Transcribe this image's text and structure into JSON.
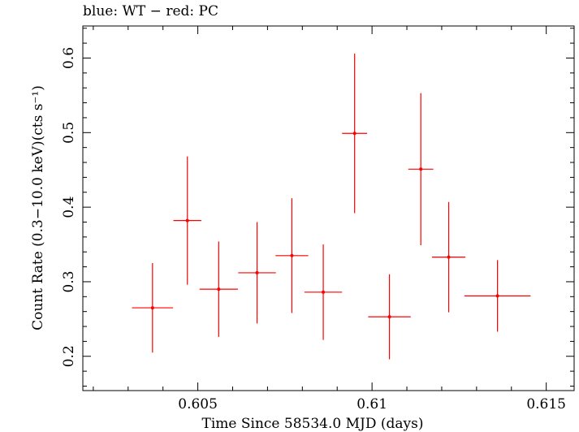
{
  "chart_data": {
    "type": "scatter",
    "title": "blue: WT − red: PC",
    "xlabel": "Time Since 58534.0 MJD (days)",
    "ylabel": "Count Rate (0.3−10.0 keV)(cts s⁻¹)",
    "xlim": [
      0.6017,
      0.6158
    ],
    "ylim": [
      0.154,
      0.643
    ],
    "x_ticks": [
      0.605,
      0.61,
      0.615
    ],
    "x_tick_labels": [
      "0.605",
      "0.61",
      "0.615"
    ],
    "y_ticks": [
      0.2,
      0.3,
      0.4,
      0.5,
      0.6
    ],
    "y_tick_labels": [
      "0.2",
      "0.3",
      "0.4",
      "0.5",
      "0.6"
    ],
    "grid": false,
    "series": [
      {
        "color": "#ff0000",
        "points": [
          {
            "x": 0.6037,
            "y": 0.265,
            "xerr": 0.00059,
            "yerr_low": 0.06,
            "yerr_high": 0.06
          },
          {
            "x": 0.6047,
            "y": 0.382,
            "xerr": 0.0004,
            "yerr_low": 0.086,
            "yerr_high": 0.086
          },
          {
            "x": 0.6056,
            "y": 0.29,
            "xerr": 0.00055,
            "yerr_low": 0.064,
            "yerr_high": 0.064
          },
          {
            "x": 0.6067,
            "y": 0.312,
            "xerr": 0.00054,
            "yerr_low": 0.068,
            "yerr_high": 0.068
          },
          {
            "x": 0.6077,
            "y": 0.335,
            "xerr": 0.00047,
            "yerr_low": 0.077,
            "yerr_high": 0.077
          },
          {
            "x": 0.6086,
            "y": 0.286,
            "xerr": 0.00054,
            "yerr_low": 0.064,
            "yerr_high": 0.064
          },
          {
            "x": 0.6095,
            "y": 0.499,
            "xerr": 0.00036,
            "yerr_low": 0.107,
            "yerr_high": 0.107
          },
          {
            "x": 0.6105,
            "y": 0.253,
            "xerr": 0.00061,
            "yerr_low": 0.057,
            "yerr_high": 0.057
          },
          {
            "x": 0.6114,
            "y": 0.451,
            "xerr": 0.00036,
            "yerr_low": 0.102,
            "yerr_high": 0.102
          },
          {
            "x": 0.6122,
            "y": 0.333,
            "xerr": 0.00048,
            "yerr_low": 0.074,
            "yerr_high": 0.074
          },
          {
            "x": 0.6136,
            "y": 0.281,
            "xerr": 0.00095,
            "yerr_low": 0.048,
            "yerr_high": 0.048
          }
        ]
      }
    ]
  }
}
